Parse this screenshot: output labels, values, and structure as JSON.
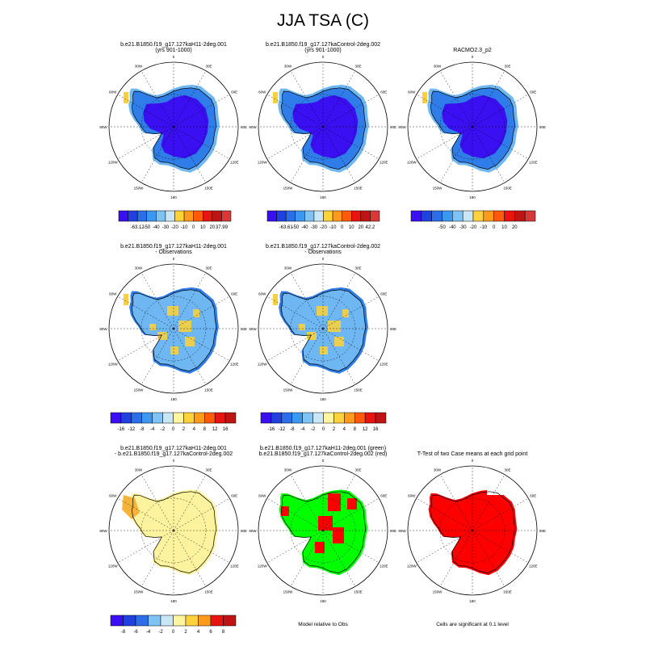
{
  "title": "JJA TSA (C)",
  "panels": [
    {
      "id": "p1",
      "kind": "abs",
      "title_lines": [
        "b.e21.B1850.f19_g17.127kaH11-2deg.001",
        "(yrs 901-1000)"
      ]
    },
    {
      "id": "p2",
      "kind": "abs",
      "title_lines": [
        "b.e21.B1850.f19_g17.127kaControl-2deg.002",
        "(yrs 901-1000)"
      ]
    },
    {
      "id": "p3",
      "kind": "abs",
      "title_lines": [
        "RACMO2.3_p2"
      ]
    },
    {
      "id": "p4",
      "kind": "bias",
      "title_lines": [
        "b.e21.B1850.f19_g17.127kaH11-2deg.001",
        "- Observations"
      ]
    },
    {
      "id": "p5",
      "kind": "bias",
      "title_lines": [
        "b.e21.B1850.f19_g17.127kaControl-2deg.002",
        "- Observations"
      ]
    },
    {
      "id": "p6",
      "kind": "diff",
      "title_lines": [
        "b.e21.B1850.f19_g17.127kaH11-2deg.001",
        "- b.e21.B1850.f19_g17.127kaControl-2deg.002"
      ]
    },
    {
      "id": "p7",
      "kind": "gr",
      "title_lines": [
        "b.e21.B1850.f19_g17.127kaH11-2deg.001 (green)",
        "b.e21.B1850.f19_g17.127kaControl-2deg.002 (red)"
      ]
    },
    {
      "id": "p8",
      "kind": "sig",
      "title_lines": [
        "T-Test of two Case means at each grid point"
      ]
    }
  ],
  "lon_labels": [
    "0",
    "30E",
    "60E",
    "90E",
    "120E",
    "150E",
    "180",
    "150W",
    "120W",
    "90W",
    "60W",
    "30W"
  ],
  "colorbars": [
    {
      "id": "cb1",
      "labels": [
        "-63.12",
        "-50",
        "-40",
        "-30",
        "-20",
        "-10",
        "0",
        "10",
        "20",
        "37.99"
      ],
      "colors": [
        "#3a0ff2",
        "#2040e0",
        "#2b6ee8",
        "#3c97f0",
        "#7fc3f5",
        "#c8e6f5",
        "#ffd23c",
        "#ff9a1a",
        "#ff5a0a",
        "#e8140f",
        "#c01414",
        "#d43a3a"
      ]
    },
    {
      "id": "cb2",
      "labels": [
        "-63.61",
        "-50",
        "-40",
        "-30",
        "-20",
        "-10",
        "0",
        "10",
        "20",
        "42.2"
      ],
      "colors": [
        "#3a0ff2",
        "#2040e0",
        "#2b6ee8",
        "#3c97f0",
        "#7fc3f5",
        "#c8e6f5",
        "#ffd23c",
        "#ff9a1a",
        "#ff5a0a",
        "#e8140f",
        "#c01414",
        "#d43a3a"
      ]
    },
    {
      "id": "cb3",
      "labels": [
        "-50",
        "-40",
        "-30",
        "-20",
        "-10",
        "0",
        "10",
        "20"
      ],
      "colors": [
        "#3a0ff2",
        "#2040e0",
        "#2b6ee8",
        "#3c97f0",
        "#7fc3f5",
        "#c8e6f5",
        "#ffd23c",
        "#ff9a1a",
        "#ff5a0a",
        "#e8140f",
        "#c01414",
        "#d43a3a"
      ]
    },
    {
      "id": "cb4",
      "labels": [
        "-16",
        "-12",
        "-8",
        "-4",
        "-2",
        "0",
        "2",
        "4",
        "8",
        "12",
        "16"
      ],
      "colors": [
        "#3a0ff2",
        "#2040e0",
        "#2b6ee8",
        "#3c97f0",
        "#7fc3f5",
        "#c8e6f5",
        "#fff5a0",
        "#ffd23c",
        "#ff9a1a",
        "#ff5a0a",
        "#e8140f",
        "#c01414"
      ]
    },
    {
      "id": "cb5",
      "labels": [
        "-16",
        "-12",
        "-8",
        "-4",
        "-2",
        "0",
        "2",
        "4",
        "8",
        "12",
        "16"
      ],
      "colors": [
        "#3a0ff2",
        "#2040e0",
        "#2b6ee8",
        "#3c97f0",
        "#7fc3f5",
        "#c8e6f5",
        "#fff5a0",
        "#ffd23c",
        "#ff9a1a",
        "#ff5a0a",
        "#e8140f",
        "#c01414"
      ]
    },
    {
      "id": "cb6",
      "labels": [
        "-8",
        "-6",
        "-4",
        "-2",
        "0",
        "2",
        "4",
        "6",
        "8"
      ],
      "colors": [
        "#3a0ff2",
        "#2040e0",
        "#2b6ee8",
        "#7fc3f5",
        "#c8e6f5",
        "#fff5a0",
        "#ffd23c",
        "#ff9a1a",
        "#e8140f",
        "#c01414"
      ]
    }
  ],
  "notes": {
    "p7": "Model relative to Obs",
    "p8": "Cells are significant at 0.1 level"
  },
  "fill_colors": {
    "deep": "#3a0ff2",
    "mid": "#2f7de8",
    "light": "#6fb7f2",
    "warm": "#f7d040",
    "diffyellow": "#fdf39e",
    "difforange": "#f4b43a",
    "green": "#00ff00",
    "red": "#ff0000"
  },
  "chart_data": {
    "type": "heatmap",
    "title": "JJA TSA (C)",
    "variable": "TSA",
    "units": "C",
    "season": "JJA",
    "projection": "south polar stereographic",
    "colorbar_ranges": [
      [
        -63.12,
        37.99
      ],
      [
        -63.61,
        42.2
      ],
      [
        -50,
        20
      ],
      [
        -16,
        16
      ],
      [
        -16,
        16
      ],
      [
        -8,
        8
      ]
    ]
  }
}
